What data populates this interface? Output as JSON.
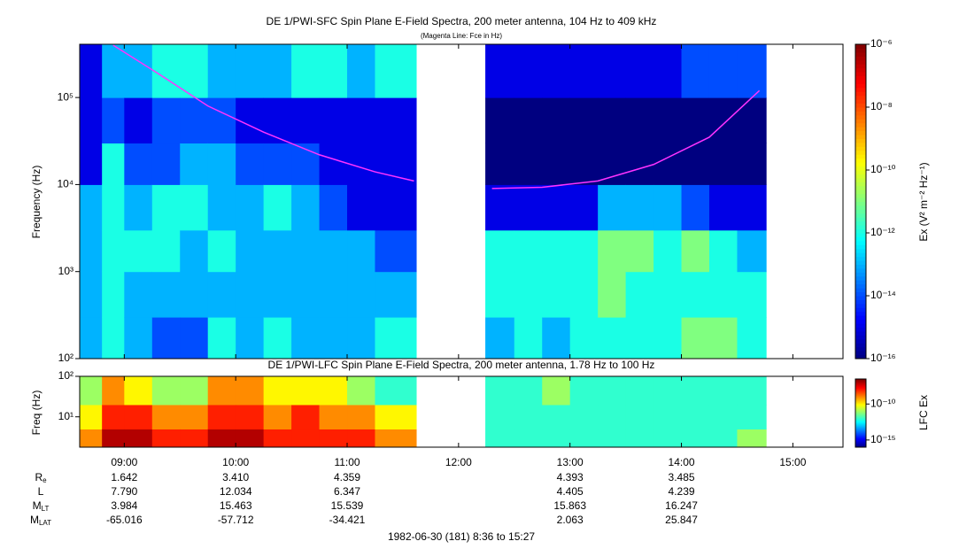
{
  "chart_data": [
    {
      "type": "heatmap",
      "title": "DE 1/PWI-SFC  Spin Plane E-Field Spectra, 200 meter antenna, 104 Hz to 409 kHz",
      "subtitle": "(Magenta Line: Fce in Hz)",
      "y_label": "Frequency (Hz)",
      "colorbar_label": "Ex (V² m⁻² Hz⁻¹)",
      "log_y": true,
      "log_color": true,
      "xlim": [
        8.6,
        15.45
      ],
      "xticks": [
        {
          "value": 9,
          "label": "09:00"
        },
        {
          "value": 10,
          "label": "10:00"
        },
        {
          "value": 11,
          "label": "11:00"
        },
        {
          "value": 12,
          "label": "12:00"
        },
        {
          "value": 13,
          "label": "13:00"
        },
        {
          "value": 14,
          "label": "14:00"
        },
        {
          "value": 15,
          "label": "15:00"
        }
      ],
      "ylim": [
        100,
        409000
      ],
      "yticks": [
        {
          "value": 100,
          "label": "10²"
        },
        {
          "value": 1000,
          "label": "10³"
        },
        {
          "value": 10000,
          "label": "10⁴"
        },
        {
          "value": 100000,
          "label": "10⁵"
        }
      ],
      "clim": [
        1e-16,
        1e-06
      ],
      "cticks": [
        {
          "value": 1e-06,
          "label": "10⁻⁶"
        },
        {
          "value": 1e-08,
          "label": "10⁻⁸"
        },
        {
          "value": 1e-10,
          "label": "10⁻¹⁰"
        },
        {
          "value": 1e-12,
          "label": "10⁻¹²"
        },
        {
          "value": 1e-14,
          "label": "10⁻¹⁴"
        },
        {
          "value": 1e-16,
          "label": "10⁻¹⁶"
        }
      ],
      "x_edges": [
        8.6,
        8.8,
        9.0,
        9.25,
        9.5,
        9.75,
        10.0,
        10.25,
        10.5,
        10.75,
        11.0,
        11.25,
        11.62,
        12.24,
        12.5,
        12.75,
        13.0,
        13.25,
        13.5,
        13.75,
        14.0,
        14.25,
        14.5,
        14.76,
        15.45
      ],
      "y_edges": [
        100,
        300,
        1000,
        3000,
        10000,
        30000,
        100000,
        409000
      ],
      "z": [
        [
          1e-13,
          1e-13,
          1e-13,
          1e-13,
          1e-15,
          1e-15,
          1e-15
        ],
        [
          1e-12,
          1e-12,
          1e-12,
          1e-12,
          1e-12,
          1e-14,
          1e-13
        ],
        [
          1e-13,
          1e-13,
          1e-12,
          1e-13,
          1e-14,
          1e-15,
          1e-13
        ],
        [
          1e-14,
          1e-13,
          1e-12,
          1e-12,
          1e-14,
          1e-14,
          1e-12
        ],
        [
          1e-14,
          1e-13,
          1e-13,
          1e-12,
          1e-13,
          1e-14,
          1e-12
        ],
        [
          1e-12,
          1e-13,
          1e-12,
          1e-13,
          1e-13,
          1e-14,
          1e-13
        ],
        [
          1e-13,
          1e-13,
          1e-13,
          1e-13,
          1e-14,
          1e-15,
          1e-13
        ],
        [
          1e-12,
          1e-13,
          1e-13,
          1e-12,
          1e-14,
          1e-15,
          1e-13
        ],
        [
          1e-13,
          1e-13,
          1e-13,
          1e-13,
          1e-14,
          1e-15,
          1e-12
        ],
        [
          1e-13,
          1e-13,
          1e-13,
          1e-14,
          1e-15,
          1e-15,
          1e-12
        ],
        [
          1e-13,
          1e-13,
          1e-13,
          1e-15,
          1e-15,
          1e-15,
          1e-13
        ],
        [
          1e-12,
          1e-13,
          1e-14,
          1e-15,
          1e-15,
          1e-15,
          1e-12
        ],
        [
          null,
          null,
          null,
          null,
          null,
          null,
          null
        ],
        [
          1e-13,
          1e-12,
          1e-12,
          1e-15,
          1e-16,
          1e-16,
          1e-15
        ],
        [
          1e-12,
          1e-12,
          1e-12,
          1e-15,
          1e-16,
          1e-16,
          1e-15
        ],
        [
          1e-13,
          1e-12,
          1e-12,
          1e-15,
          1e-16,
          1e-16,
          1e-15
        ],
        [
          1e-12,
          1e-12,
          1e-12,
          1e-15,
          1e-16,
          1e-16,
          1e-15
        ],
        [
          1e-12,
          1e-11,
          1e-11,
          1e-13,
          1e-16,
          1e-16,
          1e-15
        ],
        [
          1e-12,
          1e-12,
          1e-11,
          1e-13,
          1e-16,
          1e-16,
          1e-15
        ],
        [
          1e-12,
          1e-12,
          1e-12,
          1e-13,
          1e-16,
          1e-16,
          1e-15
        ],
        [
          1e-11,
          1e-12,
          1e-11,
          1e-14,
          1e-16,
          1e-16,
          1e-14
        ],
        [
          1e-11,
          1e-12,
          1e-12,
          1e-15,
          1e-16,
          1e-16,
          1e-14
        ],
        [
          1e-12,
          1e-12,
          1e-13,
          1e-15,
          1e-16,
          1e-16,
          1e-14
        ],
        [
          null,
          null,
          null,
          null,
          null,
          null,
          null
        ]
      ],
      "overlay": {
        "color": "#ff33ff",
        "x": [
          8.9,
          9.3,
          9.75,
          10.25,
          10.75,
          11.25,
          11.6,
          null,
          12.3,
          12.75,
          13.25,
          13.75,
          14.25,
          14.7
        ],
        "values": [
          400000,
          190000,
          80000,
          40000,
          22000,
          14000,
          11000,
          null,
          9000,
          9300,
          11000,
          17000,
          35000,
          120000
        ]
      }
    },
    {
      "type": "heatmap",
      "title": "DE 1/PWI-LFC  Spin Plane E-Field Spectra, 200 meter antenna, 1.78 Hz to 100 Hz",
      "y_label": "Freq (Hz)",
      "colorbar_label": "LFC Ex",
      "log_y": true,
      "log_color": true,
      "xlim": [
        8.6,
        15.45
      ],
      "ylim": [
        1.78,
        100
      ],
      "yticks": [
        {
          "value": 10,
          "label": "10¹"
        },
        {
          "value": 100,
          "label": "10²"
        }
      ],
      "clim": [
        1e-16,
        3e-07
      ],
      "cticks": [
        {
          "value": 1e-10,
          "label": "10⁻¹⁰"
        },
        {
          "value": 1e-15,
          "label": "10⁻¹⁵"
        }
      ],
      "x_edges": [
        8.6,
        8.8,
        9.0,
        9.25,
        9.5,
        9.75,
        10.0,
        10.25,
        10.5,
        10.75,
        11.0,
        11.25,
        11.62,
        12.24,
        12.5,
        12.75,
        13.0,
        13.25,
        13.5,
        13.75,
        14.0,
        14.25,
        14.5,
        14.76,
        15.45
      ],
      "y_edges": [
        1.78,
        5,
        20,
        100
      ],
      "z": [
        [
          1e-09,
          1e-10,
          1e-11
        ],
        [
          1e-07,
          1e-08,
          1e-09
        ],
        [
          1e-07,
          1e-08,
          1e-10
        ],
        [
          1e-08,
          1e-09,
          1e-11
        ],
        [
          1e-08,
          1e-09,
          1e-11
        ],
        [
          1e-07,
          1e-08,
          1e-09
        ],
        [
          1e-07,
          1e-08,
          1e-09
        ],
        [
          1e-08,
          1e-09,
          1e-10
        ],
        [
          1e-08,
          1e-08,
          1e-10
        ],
        [
          1e-08,
          1e-09,
          1e-10
        ],
        [
          1e-08,
          1e-09,
          1e-11
        ],
        [
          1e-09,
          1e-10,
          1e-12
        ],
        [
          null,
          null,
          null
        ],
        [
          1e-12,
          1e-12,
          1e-12
        ],
        [
          1e-12,
          1e-12,
          1e-12
        ],
        [
          1e-12,
          1e-12,
          1e-11
        ],
        [
          1e-12,
          1e-12,
          1e-12
        ],
        [
          1e-12,
          1e-12,
          1e-12
        ],
        [
          1e-12,
          1e-12,
          1e-12
        ],
        [
          1e-12,
          1e-12,
          1e-12
        ],
        [
          1e-12,
          1e-12,
          1e-12
        ],
        [
          1e-12,
          1e-12,
          1e-12
        ],
        [
          1e-11,
          1e-12,
          1e-12
        ],
        [
          null,
          null,
          null
        ]
      ]
    }
  ],
  "ephemeris": {
    "times": [
      9,
      10,
      11,
      12,
      13,
      14
    ],
    "rows": [
      {
        "label": "R",
        "sub": "e",
        "values": [
          "1.642",
          "3.410",
          "4.359",
          null,
          "4.393",
          "3.485"
        ]
      },
      {
        "label": "L",
        "values": [
          "7.790",
          "12.034",
          "6.347",
          null,
          "4.405",
          "4.239"
        ]
      },
      {
        "label": "M",
        "sub": "LT",
        "values": [
          "3.984",
          "15.463",
          "15.539",
          null,
          "15.863",
          "16.247"
        ]
      },
      {
        "label": "M",
        "sub": "LAT",
        "values": [
          "-65.016",
          "-57.712",
          "-34.421",
          null,
          "2.063",
          "25.847"
        ]
      }
    ]
  },
  "footer": "1982-06-30 (181) 8:36 to 15:27"
}
